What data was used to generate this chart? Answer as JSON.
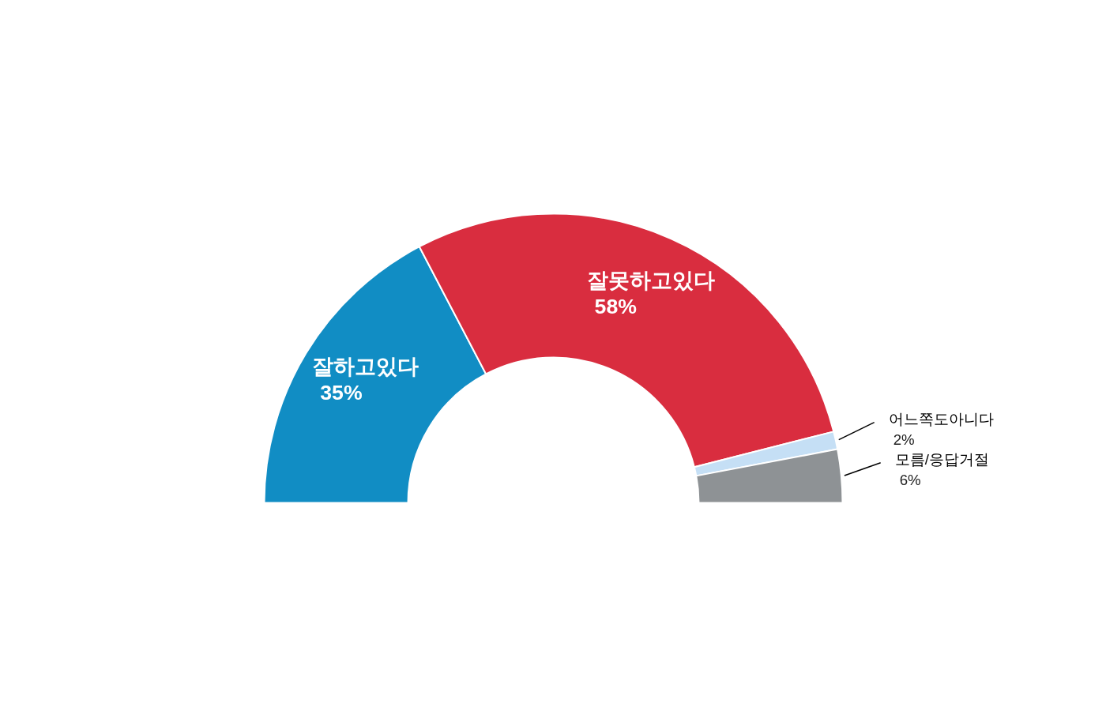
{
  "chart_data": {
    "type": "donut",
    "categories": [
      "잘하고있다",
      "잘못하고있다",
      "어느쪽도아니다",
      "모름/응답거절"
    ],
    "values": [
      35,
      58,
      2,
      6
    ],
    "colors": [
      "#118dc4",
      "#d92d3f",
      "#c5dff5",
      "#8e9295"
    ],
    "value_labels": [
      "35%",
      "58%",
      "2%",
      "6%"
    ]
  }
}
